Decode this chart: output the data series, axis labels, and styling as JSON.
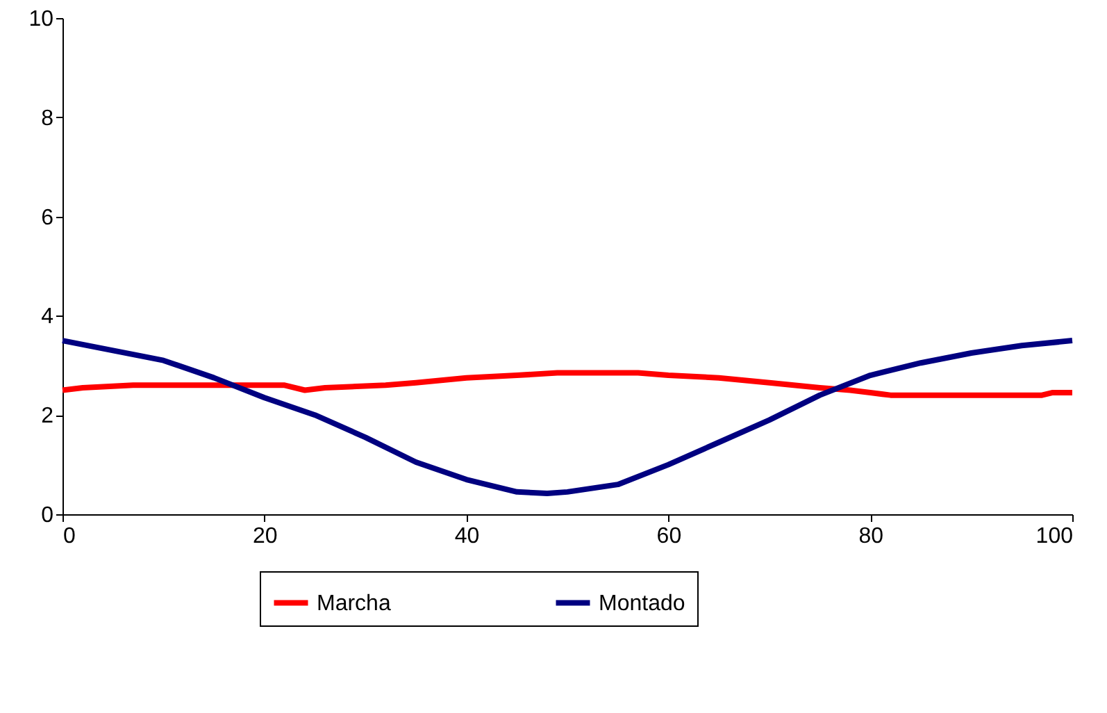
{
  "chart_data": {
    "type": "line",
    "series": [
      {
        "name": "Marcha",
        "color": "#ff0000",
        "x": [
          0,
          2,
          7,
          22,
          24,
          26,
          32,
          35,
          40,
          45,
          49,
          57,
          60,
          65,
          70,
          75,
          78,
          80,
          82,
          97,
          98,
          100
        ],
        "values": [
          2.5,
          2.55,
          2.6,
          2.6,
          2.5,
          2.55,
          2.6,
          2.65,
          2.75,
          2.8,
          2.85,
          2.85,
          2.8,
          2.75,
          2.65,
          2.55,
          2.5,
          2.45,
          2.4,
          2.4,
          2.45,
          2.45
        ]
      },
      {
        "name": "Montado",
        "color": "#000080",
        "x": [
          0,
          5,
          10,
          15,
          20,
          25,
          30,
          35,
          40,
          45,
          48,
          50,
          55,
          60,
          65,
          70,
          75,
          80,
          85,
          90,
          95,
          100
        ],
        "values": [
          3.5,
          3.3,
          3.1,
          2.75,
          2.35,
          2.0,
          1.55,
          1.05,
          0.7,
          0.45,
          0.42,
          0.45,
          0.6,
          1.0,
          1.45,
          1.9,
          2.4,
          2.8,
          3.05,
          3.25,
          3.4,
          3.5
        ]
      }
    ],
    "xlim": [
      0,
      100
    ],
    "xticks": [
      0,
      20,
      40,
      60,
      80,
      100
    ],
    "ylim": [
      0,
      10
    ],
    "yticks": [
      0,
      2,
      4,
      6,
      8,
      10
    ],
    "grid": false,
    "legend": "bottom",
    "marker": "none",
    "line_style": "solid"
  }
}
